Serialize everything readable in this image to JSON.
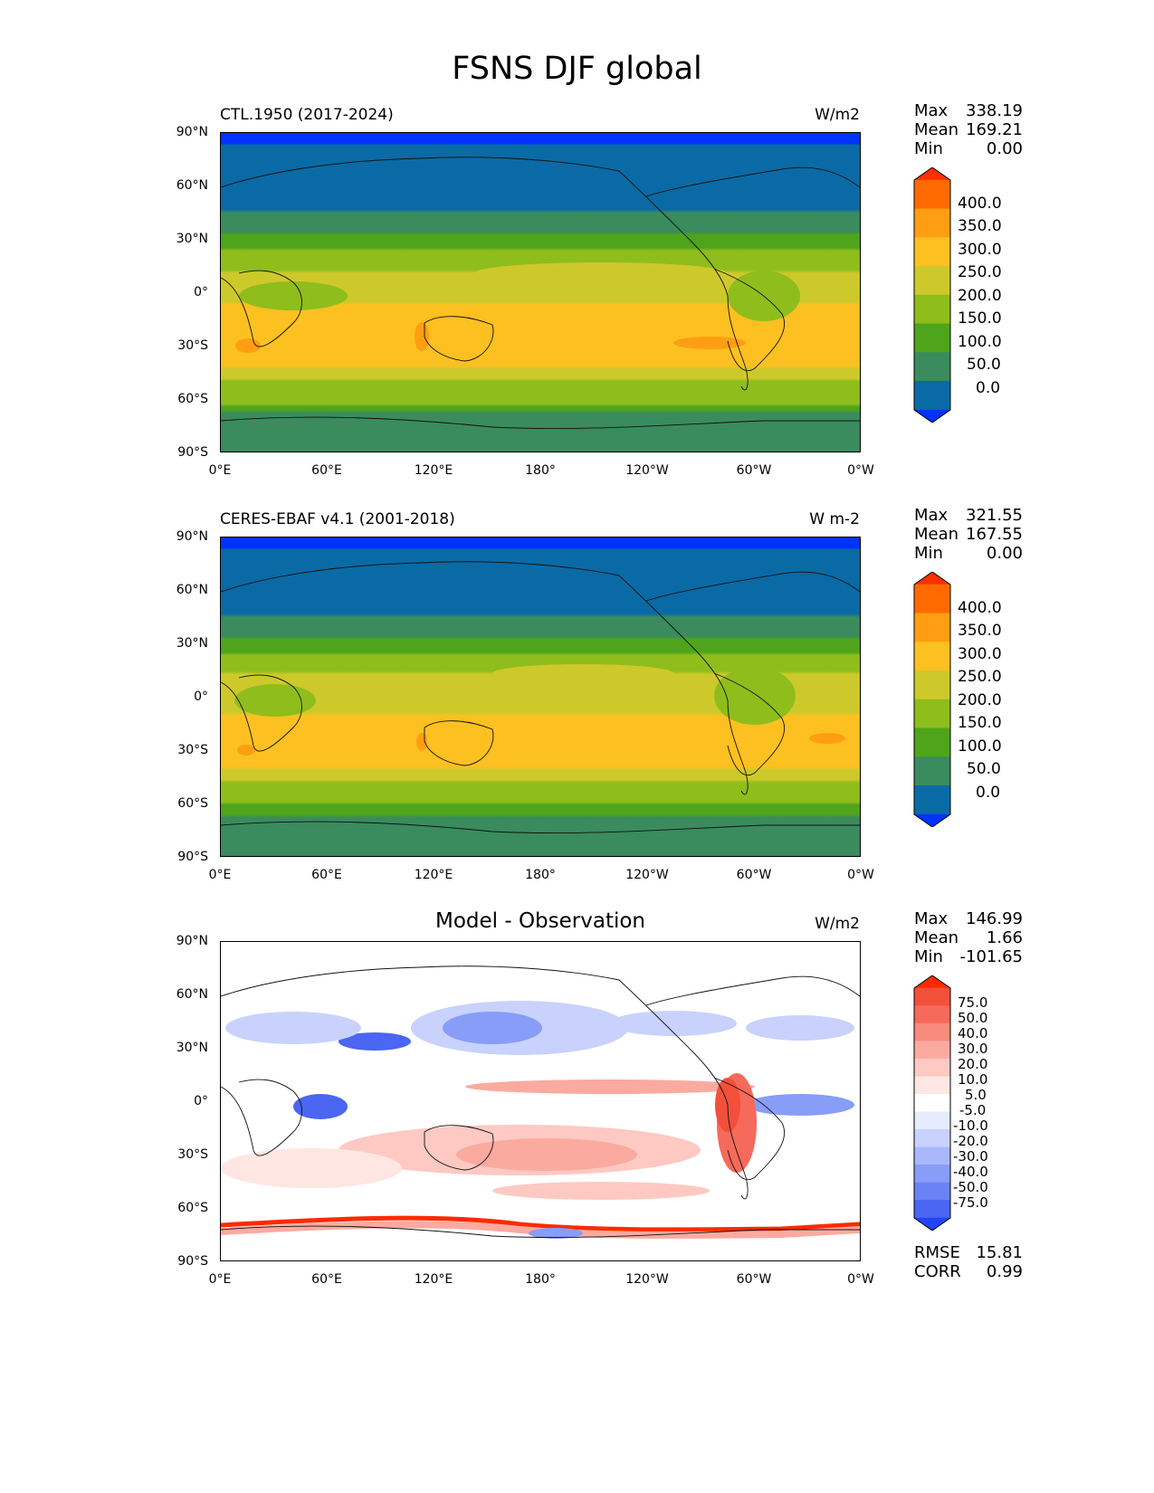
{
  "figure": {
    "title": "FSNS DJF global"
  },
  "axes": {
    "lat_labels": [
      "90°N",
      "60°N",
      "30°N",
      "0°",
      "30°S",
      "60°S",
      "90°S"
    ],
    "lon_labels": [
      "0°E",
      "60°E",
      "120°E",
      "180°",
      "120°W",
      "60°W",
      "0°W"
    ]
  },
  "panels": [
    {
      "left_title": "CTL.1950 (2017-2024)",
      "units": "W/m2",
      "stats": {
        "max_label": "Max",
        "max": "338.19",
        "mean_label": "Mean",
        "mean": "169.21",
        "min_label": "Min",
        "min": "0.00"
      },
      "colorbar": {
        "levels": [
          "400.0",
          "350.0",
          "300.0",
          "250.0",
          "200.0",
          "150.0",
          "100.0",
          "50.0",
          "0.0"
        ],
        "colors": [
          "#ff3000",
          "#ff6a00",
          "#ff9e12",
          "#fcc021",
          "#cec92a",
          "#8fbd1c",
          "#4ea41a",
          "#3a8b5e",
          "#0a6aa5",
          "#0033ff"
        ]
      }
    },
    {
      "left_title": "CERES-EBAF v4.1 (2001-2018)",
      "units": "W m-2",
      "stats": {
        "max_label": "Max",
        "max": "321.55",
        "mean_label": "Mean",
        "mean": "167.55",
        "min_label": "Min",
        "min": "0.00"
      },
      "colorbar": {
        "levels": [
          "400.0",
          "350.0",
          "300.0",
          "250.0",
          "200.0",
          "150.0",
          "100.0",
          "50.0",
          "0.0"
        ],
        "colors": [
          "#ff3000",
          "#ff6a00",
          "#ff9e12",
          "#fcc021",
          "#cec92a",
          "#8fbd1c",
          "#4ea41a",
          "#3a8b5e",
          "#0a6aa5",
          "#0033ff"
        ]
      }
    },
    {
      "center_title": "Model - Observation",
      "units": "W/m2",
      "stats": {
        "max_label": "Max",
        "max": "146.99",
        "mean_label": "Mean",
        "mean": "1.66",
        "min_label": "Min",
        "min": "-101.65"
      },
      "extra_stats": {
        "rmse_label": "RMSE",
        "rmse": "15.81",
        "corr_label": "CORR",
        "corr": "0.99"
      },
      "colorbar": {
        "levels": [
          "75.0",
          "50.0",
          "40.0",
          "30.0",
          "20.0",
          "10.0",
          "5.0",
          "-5.0",
          "-10.0",
          "-20.0",
          "-30.0",
          "-40.0",
          "-50.0",
          "-75.0"
        ],
        "colors": [
          "#ff2a00",
          "#f3503b",
          "#f56a5a",
          "#f78b7c",
          "#fbaaa0",
          "#fdc9c2",
          "#fee6e2",
          "#ffffff",
          "#e6ebfe",
          "#c8d2fd",
          "#a8b8fb",
          "#879df8",
          "#6a82f4",
          "#4a66f2",
          "#2244ff"
        ]
      }
    }
  ]
}
